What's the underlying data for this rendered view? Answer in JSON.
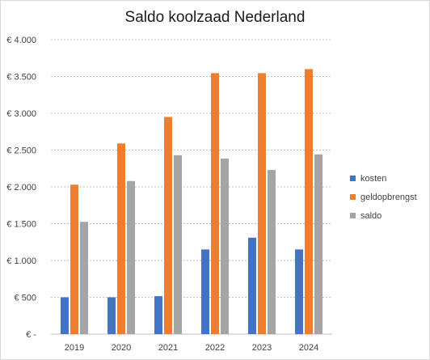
{
  "chart_data": {
    "type": "bar",
    "title": "Saldo koolzaad Nederland",
    "xlabel": "",
    "ylabel": "",
    "categories": [
      "2019",
      "2020",
      "2021",
      "2022",
      "2023",
      "2024"
    ],
    "series": [
      {
        "name": "kosten",
        "color": "#4472c4",
        "values": [
          500,
          500,
          515,
          1150,
          1310,
          1150
        ]
      },
      {
        "name": "geldopbrengst",
        "color": "#ed7d31",
        "values": [
          2030,
          2590,
          2950,
          3545,
          3545,
          3600
        ]
      },
      {
        "name": "saldo",
        "color": "#a5a5a5",
        "values": [
          1525,
          2080,
          2430,
          2385,
          2230,
          2440
        ]
      }
    ],
    "ylim": [
      0,
      4000
    ],
    "y_ticks": [
      0,
      500,
      1000,
      1500,
      2000,
      2500,
      3000,
      3500,
      4000
    ],
    "y_tick_labels": [
      "€ -",
      "€ 500",
      "€ 1.000",
      "€ 1.500",
      "€ 2.000",
      "€ 2.500",
      "€ 3.000",
      "€ 3.500",
      "€ 4.000"
    ],
    "grid": "horizontal-dotted",
    "legend_position": "right"
  }
}
